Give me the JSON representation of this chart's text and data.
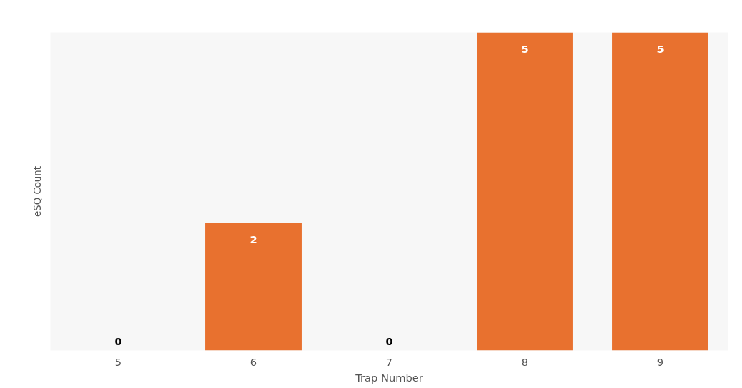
{
  "chart_data": {
    "type": "bar",
    "xlabel": "Trap Number",
    "ylabel": "eSQ Count",
    "categories": [
      "5",
      "6",
      "7",
      "8",
      "9"
    ],
    "values": [
      0,
      2,
      0,
      5,
      5
    ],
    "color": "#e8712f",
    "data_labels": true,
    "grid": false
  }
}
